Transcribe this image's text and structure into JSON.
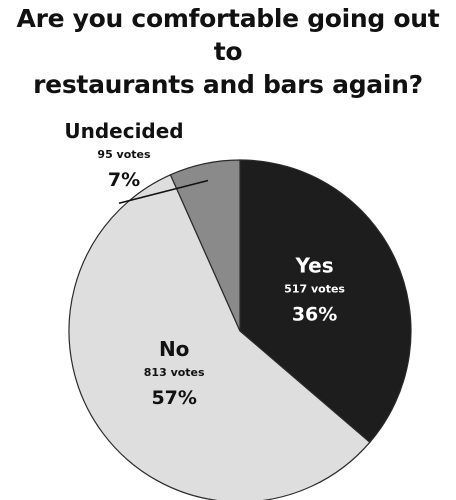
{
  "chart_data": {
    "type": "pie",
    "title": "Are you comfortable going out to restaurants and bars again?",
    "title_lines": [
      "Are you comfortable going out to",
      "restaurants and bars again?"
    ],
    "slices": [
      {
        "label": "Yes",
        "votes": 517,
        "votes_text": "517 votes",
        "percent_text": "36%",
        "color": "#1d1d1d",
        "text_color": "#ffffff"
      },
      {
        "label": "No",
        "votes": 813,
        "votes_text": "813 votes",
        "percent_text": "57%",
        "color": "#dedede",
        "text_color": "#111111"
      },
      {
        "label": "Undecided",
        "votes": 95,
        "votes_text": "95 votes",
        "percent_text": "7%",
        "color": "#8a8a8a",
        "text_color": "#111111"
      }
    ]
  }
}
